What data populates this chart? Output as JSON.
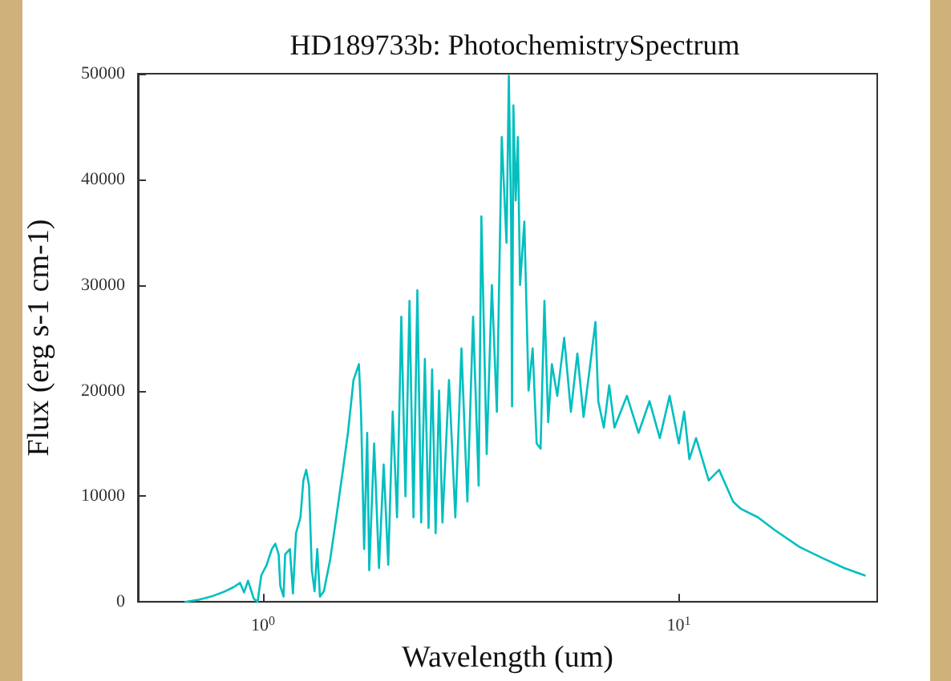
{
  "chart_data": {
    "type": "line",
    "title": "HD189733b: PhotochemistrySpectrum",
    "xlabel": "Wavelength (um)",
    "ylabel": "Flux (erg s-1 cm-1)",
    "log": "x",
    "grid": false,
    "marker": "none",
    "line_style": "solid",
    "xlim": [
      0.5,
      30
    ],
    "xticks": [
      {
        "value": 1,
        "label": "10$^{0}$"
      },
      {
        "value": 10,
        "label": "10$^{1}$"
      }
    ],
    "ylim": [
      0,
      50000
    ],
    "yticks": [
      0,
      10000,
      20000,
      30000,
      40000,
      50000
    ],
    "series": [
      {
        "color": "#00bfbf",
        "x": [
          0.65,
          0.7,
          0.75,
          0.8,
          0.85,
          0.88,
          0.9,
          0.92,
          0.95,
          0.97,
          0.99,
          1.02,
          1.05,
          1.07,
          1.09,
          1.1,
          1.12,
          1.13,
          1.16,
          1.18,
          1.2,
          1.23,
          1.25,
          1.27,
          1.29,
          1.31,
          1.33,
          1.35,
          1.37,
          1.4,
          1.45,
          1.5,
          1.55,
          1.6,
          1.65,
          1.7,
          1.72,
          1.75,
          1.78,
          1.8,
          1.85,
          1.9,
          1.95,
          2.0,
          2.05,
          2.1,
          2.15,
          2.2,
          2.25,
          2.3,
          2.35,
          2.4,
          2.45,
          2.5,
          2.55,
          2.6,
          2.65,
          2.7,
          2.8,
          2.9,
          3.0,
          3.1,
          3.2,
          3.3,
          3.35,
          3.45,
          3.55,
          3.65,
          3.75,
          3.85,
          3.9,
          3.95,
          3.97,
          4.0,
          4.05,
          4.1,
          4.15,
          4.25,
          4.35,
          4.45,
          4.55,
          4.65,
          4.75,
          4.85,
          4.95,
          5.1,
          5.3,
          5.5,
          5.7,
          5.9,
          6.1,
          6.3,
          6.4,
          6.6,
          6.8,
          7.0,
          7.5,
          8.0,
          8.5,
          9.0,
          9.5,
          10.0,
          10.3,
          10.6,
          11.0,
          11.8,
          12.5,
          13.5,
          14.1,
          15.5,
          17.0,
          19.5,
          22.0,
          25.0,
          28.0
        ],
        "values": [
          0,
          200,
          500,
          900,
          1400,
          1800,
          900,
          2000,
          300,
          0,
          2500,
          3500,
          5000,
          5500,
          4500,
          1500,
          500,
          4500,
          5000,
          800,
          6500,
          8000,
          11500,
          12500,
          11000,
          3000,
          1000,
          5000,
          500,
          1000,
          4000,
          8000,
          12000,
          16000,
          21000,
          22500,
          18000,
          5000,
          16000,
          3000,
          15000,
          3200,
          13000,
          3500,
          18000,
          8000,
          27000,
          10000,
          28500,
          8000,
          29500,
          7500,
          23000,
          7000,
          22000,
          6500,
          20000,
          7500,
          21000,
          8000,
          24000,
          9500,
          27000,
          11000,
          36500,
          14000,
          30000,
          18000,
          44000,
          34000,
          49800,
          36000,
          18500,
          47000,
          38000,
          44000,
          30000,
          36000,
          20000,
          24000,
          15000,
          14500,
          28500,
          17000,
          22500,
          19500,
          25000,
          18000,
          23500,
          17500,
          22000,
          26500,
          19000,
          16500,
          20500,
          16500,
          19500,
          16000,
          19000,
          15500,
          19500,
          15000,
          18000,
          13500,
          15500,
          11500,
          12500,
          9500,
          8800,
          8000,
          6800,
          5200,
          4200,
          3200,
          2500
        ]
      }
    ]
  }
}
